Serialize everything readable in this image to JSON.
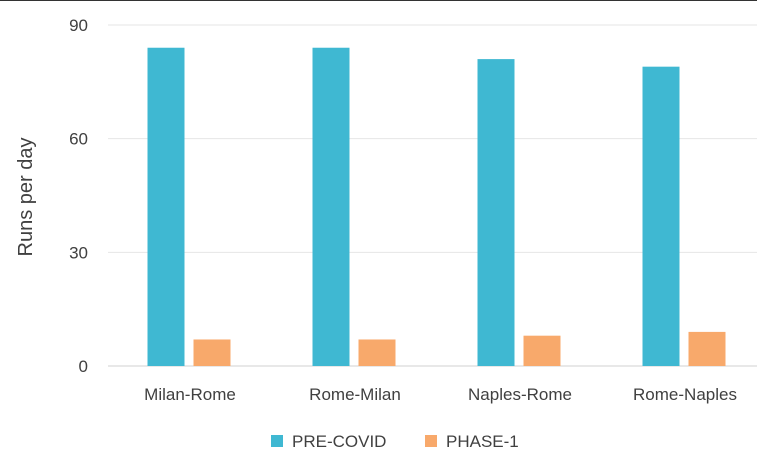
{
  "chart_data": {
    "type": "bar",
    "categories": [
      "Milan-Rome",
      "Rome-Milan",
      "Naples-Rome",
      "Rome-Naples"
    ],
    "series": [
      {
        "name": "PRE-COVID",
        "values": [
          84,
          84,
          81,
          79
        ],
        "color": "#3FB8D2"
      },
      {
        "name": "PHASE-1",
        "values": [
          7,
          7,
          8,
          9
        ],
        "color": "#F8A96B"
      }
    ],
    "ylabel": "Runs per day",
    "xlabel": "",
    "ylim": [
      0,
      90
    ],
    "yticks": [
      0,
      30,
      60,
      90
    ],
    "grid": true,
    "legend_position": "bottom"
  }
}
